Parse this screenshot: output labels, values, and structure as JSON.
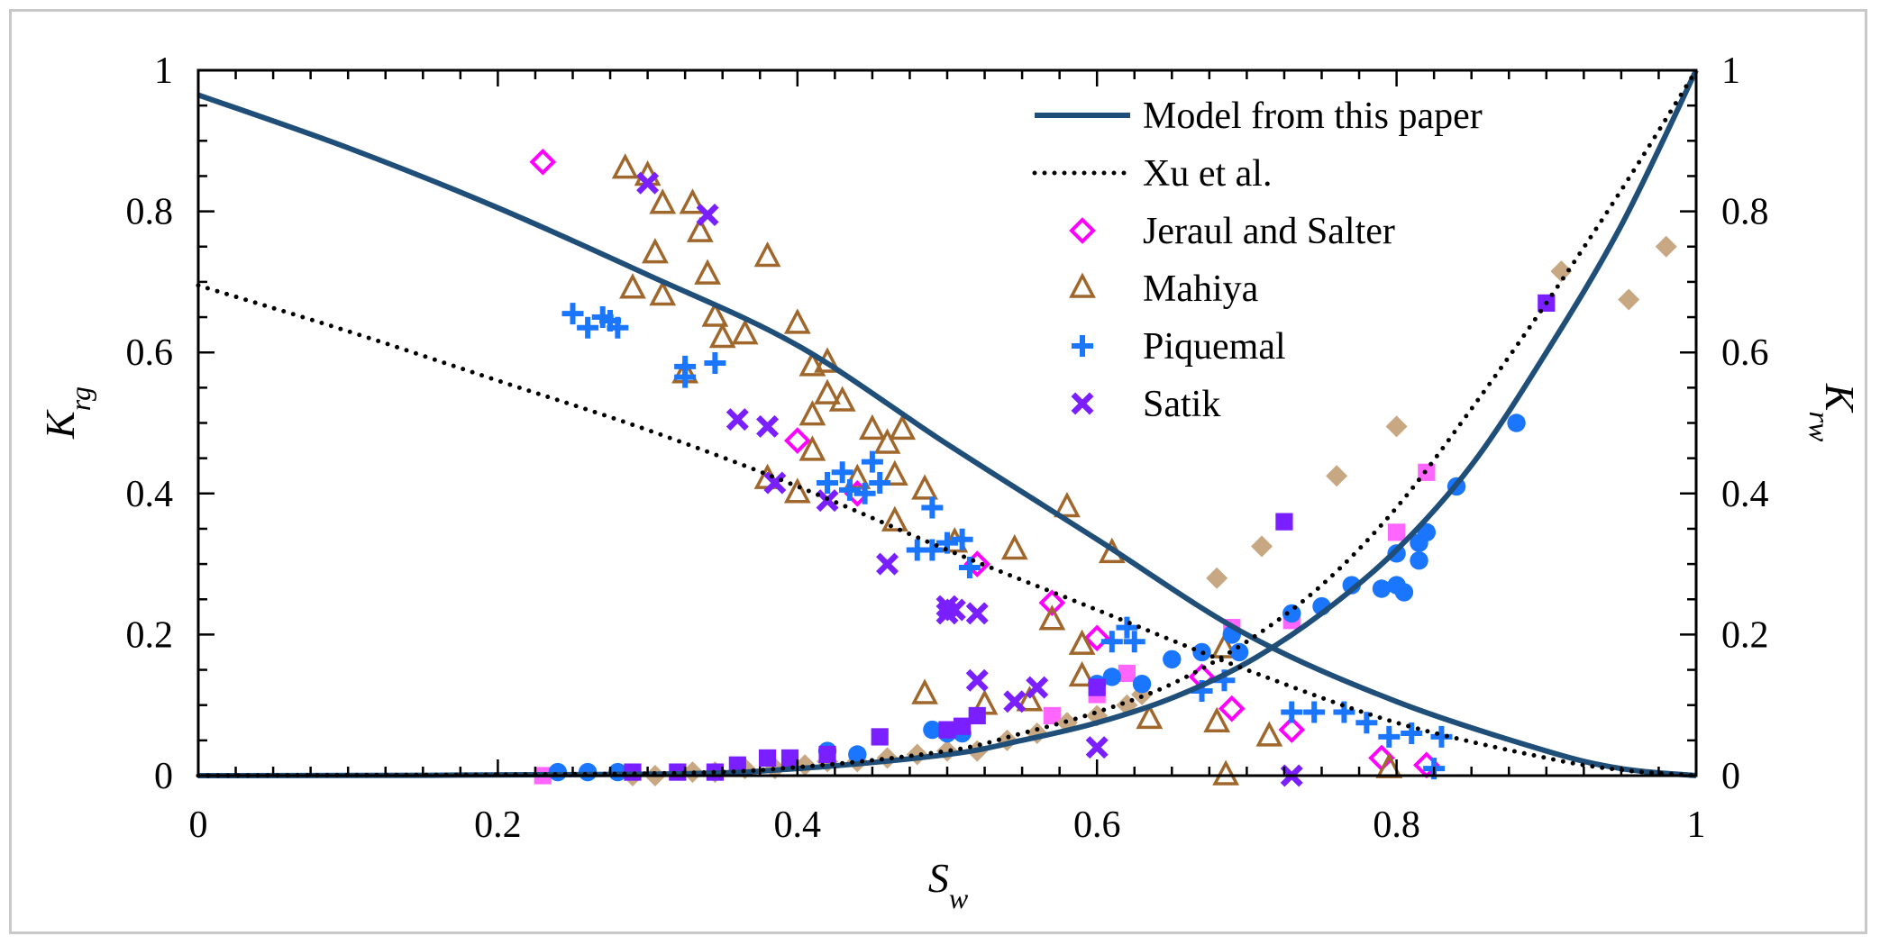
{
  "chart_data": {
    "type": "scatter",
    "title": "",
    "xlabel": "S_w",
    "ylabel_left": "K_rg",
    "ylabel_right": "K_rw",
    "xlim": [
      0,
      1
    ],
    "ylim": [
      0,
      1
    ],
    "x_ticks": [
      "0",
      "0.2",
      "0.4",
      "0.6",
      "0.8",
      "1"
    ],
    "y_ticks": [
      "0",
      "0.2",
      "0.4",
      "0.6",
      "0.8",
      "1"
    ],
    "legend_position": "top-right",
    "series": [
      {
        "name": "Model from this paper",
        "kind": "line",
        "style": "solid",
        "color": "#1f4e79",
        "curves": [
          {
            "role": "Krg",
            "x": [
              0,
              0.1,
              0.2,
              0.3,
              0.4,
              0.5,
              0.6,
              0.7,
              0.8,
              0.9,
              0.95,
              1.0
            ],
            "y": [
              0.965,
              0.89,
              0.805,
              0.71,
              0.61,
              0.47,
              0.335,
              0.2,
              0.105,
              0.035,
              0.01,
              0
            ]
          },
          {
            "role": "Krw",
            "x": [
              0,
              0.3,
              0.4,
              0.5,
              0.55,
              0.6,
              0.65,
              0.7,
              0.75,
              0.8,
              0.85,
              0.9,
              0.95,
              1.0
            ],
            "y": [
              0,
              0.002,
              0.01,
              0.03,
              0.05,
              0.075,
              0.11,
              0.16,
              0.23,
              0.32,
              0.44,
              0.6,
              0.78,
              1.0
            ]
          }
        ]
      },
      {
        "name": "Xu et al.",
        "kind": "line",
        "style": "dotted",
        "color": "#000000",
        "curves": [
          {
            "role": "Krg",
            "x": [
              0,
              0.1,
              0.2,
              0.3,
              0.4,
              0.5,
              0.6,
              0.7,
              0.8,
              0.9,
              0.95,
              1.0
            ],
            "y": [
              0.695,
              0.63,
              0.56,
              0.49,
              0.41,
              0.32,
              0.235,
              0.15,
              0.075,
              0.025,
              0.008,
              0
            ]
          },
          {
            "role": "Krw",
            "x": [
              0,
              0.3,
              0.4,
              0.5,
              0.55,
              0.6,
              0.65,
              0.7,
              0.75,
              0.8,
              0.85,
              0.9,
              0.95,
              1.0
            ],
            "y": [
              0,
              0.003,
              0.012,
              0.035,
              0.06,
              0.09,
              0.13,
              0.19,
              0.27,
              0.38,
              0.52,
              0.67,
              0.83,
              1.0
            ]
          }
        ]
      },
      {
        "name": "Jeraul and Salter",
        "kind": "marker",
        "marker": "diamond-open",
        "color": "#ff00ff",
        "points": [
          [
            0.23,
            0.87
          ],
          [
            0.4,
            0.475
          ],
          [
            0.44,
            0.4
          ],
          [
            0.52,
            0.3
          ],
          [
            0.57,
            0.245
          ],
          [
            0.6,
            0.195
          ],
          [
            0.67,
            0.14
          ],
          [
            0.69,
            0.095
          ],
          [
            0.73,
            0.065
          ],
          [
            0.79,
            0.025
          ],
          [
            0.82,
            0.015
          ]
        ],
        "krw_points": [
          [
            0.23,
            0.0
          ],
          [
            0.57,
            0.085
          ],
          [
            0.6,
            0.115
          ],
          [
            0.62,
            0.145
          ],
          [
            0.69,
            0.21
          ],
          [
            0.73,
            0.22
          ],
          [
            0.8,
            0.345
          ],
          [
            0.82,
            0.43
          ]
        ],
        "krw_color": "#ff66ff"
      },
      {
        "name": "Mahiya",
        "kind": "marker",
        "marker": "triangle-open",
        "color": "#a0672d",
        "points": [
          [
            0.285,
            0.86
          ],
          [
            0.3,
            0.85
          ],
          [
            0.305,
            0.74
          ],
          [
            0.31,
            0.81
          ],
          [
            0.29,
            0.69
          ],
          [
            0.31,
            0.68
          ],
          [
            0.325,
            0.57
          ],
          [
            0.33,
            0.81
          ],
          [
            0.335,
            0.77
          ],
          [
            0.34,
            0.71
          ],
          [
            0.345,
            0.65
          ],
          [
            0.35,
            0.62
          ],
          [
            0.365,
            0.625
          ],
          [
            0.38,
            0.735
          ],
          [
            0.4,
            0.64
          ],
          [
            0.41,
            0.58
          ],
          [
            0.42,
            0.585
          ],
          [
            0.41,
            0.51
          ],
          [
            0.42,
            0.54
          ],
          [
            0.43,
            0.53
          ],
          [
            0.41,
            0.46
          ],
          [
            0.38,
            0.42
          ],
          [
            0.4,
            0.4
          ],
          [
            0.44,
            0.42
          ],
          [
            0.45,
            0.49
          ],
          [
            0.46,
            0.47
          ],
          [
            0.47,
            0.49
          ],
          [
            0.465,
            0.425
          ],
          [
            0.465,
            0.36
          ],
          [
            0.485,
            0.405
          ],
          [
            0.505,
            0.33
          ],
          [
            0.545,
            0.32
          ],
          [
            0.58,
            0.38
          ],
          [
            0.57,
            0.22
          ],
          [
            0.59,
            0.185
          ],
          [
            0.61,
            0.315
          ],
          [
            0.59,
            0.14
          ],
          [
            0.485,
            0.115
          ],
          [
            0.525,
            0.1
          ],
          [
            0.555,
            0.105
          ],
          [
            0.635,
            0.08
          ],
          [
            0.68,
            0.075
          ],
          [
            0.685,
            0.18
          ],
          [
            0.715,
            0.055
          ],
          [
            0.686,
            0.0
          ],
          [
            0.795,
            0.01
          ]
        ],
        "krw_points": [
          [
            0.29,
            0.0
          ],
          [
            0.305,
            0.0
          ],
          [
            0.33,
            0.005
          ],
          [
            0.345,
            0.005
          ],
          [
            0.365,
            0.01
          ],
          [
            0.385,
            0.01
          ],
          [
            0.405,
            0.015
          ],
          [
            0.42,
            0.02
          ],
          [
            0.44,
            0.02
          ],
          [
            0.46,
            0.025
          ],
          [
            0.48,
            0.03
          ],
          [
            0.5,
            0.035
          ],
          [
            0.52,
            0.035
          ],
          [
            0.54,
            0.05
          ],
          [
            0.56,
            0.06
          ],
          [
            0.58,
            0.075
          ],
          [
            0.6,
            0.085
          ],
          [
            0.62,
            0.1
          ],
          [
            0.63,
            0.115
          ],
          [
            0.68,
            0.28
          ],
          [
            0.71,
            0.325
          ],
          [
            0.76,
            0.425
          ],
          [
            0.8,
            0.495
          ],
          [
            0.91,
            0.715
          ],
          [
            0.955,
            0.675
          ],
          [
            0.98,
            0.75
          ]
        ],
        "krw_color": "#c8a882"
      },
      {
        "name": "Piquemal",
        "kind": "marker",
        "marker": "plus",
        "color": "#1a75ff",
        "points": [
          [
            0.25,
            0.655
          ],
          [
            0.26,
            0.635
          ],
          [
            0.27,
            0.65
          ],
          [
            0.28,
            0.635
          ],
          [
            0.275,
            0.645
          ],
          [
            0.325,
            0.58
          ],
          [
            0.345,
            0.585
          ],
          [
            0.325,
            0.565
          ],
          [
            0.42,
            0.415
          ],
          [
            0.43,
            0.43
          ],
          [
            0.435,
            0.405
          ],
          [
            0.45,
            0.445
          ],
          [
            0.445,
            0.4
          ],
          [
            0.455,
            0.415
          ],
          [
            0.49,
            0.38
          ],
          [
            0.48,
            0.32
          ],
          [
            0.49,
            0.32
          ],
          [
            0.5,
            0.33
          ],
          [
            0.51,
            0.335
          ],
          [
            0.515,
            0.295
          ],
          [
            0.61,
            0.19
          ],
          [
            0.62,
            0.21
          ],
          [
            0.625,
            0.19
          ],
          [
            0.67,
            0.12
          ],
          [
            0.685,
            0.135
          ],
          [
            0.73,
            0.09
          ],
          [
            0.745,
            0.09
          ],
          [
            0.765,
            0.09
          ],
          [
            0.78,
            0.075
          ],
          [
            0.795,
            0.055
          ],
          [
            0.81,
            0.06
          ],
          [
            0.83,
            0.055
          ],
          [
            0.825,
            0.01
          ]
        ],
        "krw_points": [
          [
            0.24,
            0.005
          ],
          [
            0.26,
            0.005
          ],
          [
            0.28,
            0.005
          ],
          [
            0.42,
            0.035
          ],
          [
            0.44,
            0.03
          ],
          [
            0.49,
            0.065
          ],
          [
            0.5,
            0.06
          ],
          [
            0.51,
            0.06
          ],
          [
            0.6,
            0.13
          ],
          [
            0.61,
            0.14
          ],
          [
            0.63,
            0.13
          ],
          [
            0.65,
            0.165
          ],
          [
            0.67,
            0.175
          ],
          [
            0.69,
            0.2
          ],
          [
            0.695,
            0.175
          ],
          [
            0.73,
            0.23
          ],
          [
            0.75,
            0.24
          ],
          [
            0.77,
            0.27
          ],
          [
            0.79,
            0.265
          ],
          [
            0.8,
            0.27
          ],
          [
            0.805,
            0.26
          ],
          [
            0.8,
            0.315
          ],
          [
            0.815,
            0.33
          ],
          [
            0.82,
            0.345
          ],
          [
            0.815,
            0.305
          ],
          [
            0.84,
            0.41
          ],
          [
            0.88,
            0.5
          ]
        ],
        "krw_color": "#1a75ff"
      },
      {
        "name": "Satik",
        "kind": "marker",
        "marker": "x",
        "color": "#7a1fff",
        "points": [
          [
            0.3,
            0.84
          ],
          [
            0.34,
            0.795
          ],
          [
            0.36,
            0.505
          ],
          [
            0.38,
            0.495
          ],
          [
            0.385,
            0.415
          ],
          [
            0.42,
            0.39
          ],
          [
            0.46,
            0.3
          ],
          [
            0.5,
            0.24
          ],
          [
            0.505,
            0.235
          ],
          [
            0.52,
            0.23
          ],
          [
            0.5,
            0.23
          ],
          [
            0.52,
            0.135
          ],
          [
            0.545,
            0.105
          ],
          [
            0.56,
            0.125
          ],
          [
            0.6,
            0.04
          ],
          [
            0.73,
            0.0
          ]
        ],
        "krw_points": [
          [
            0.29,
            0.005
          ],
          [
            0.32,
            0.005
          ],
          [
            0.345,
            0.005
          ],
          [
            0.36,
            0.015
          ],
          [
            0.38,
            0.025
          ],
          [
            0.395,
            0.025
          ],
          [
            0.42,
            0.03
          ],
          [
            0.455,
            0.055
          ],
          [
            0.5,
            0.065
          ],
          [
            0.51,
            0.07
          ],
          [
            0.52,
            0.085
          ],
          [
            0.6,
            0.125
          ],
          [
            0.725,
            0.36
          ],
          [
            0.9,
            0.67
          ]
        ],
        "krw_color": "#7a1fff"
      }
    ]
  }
}
